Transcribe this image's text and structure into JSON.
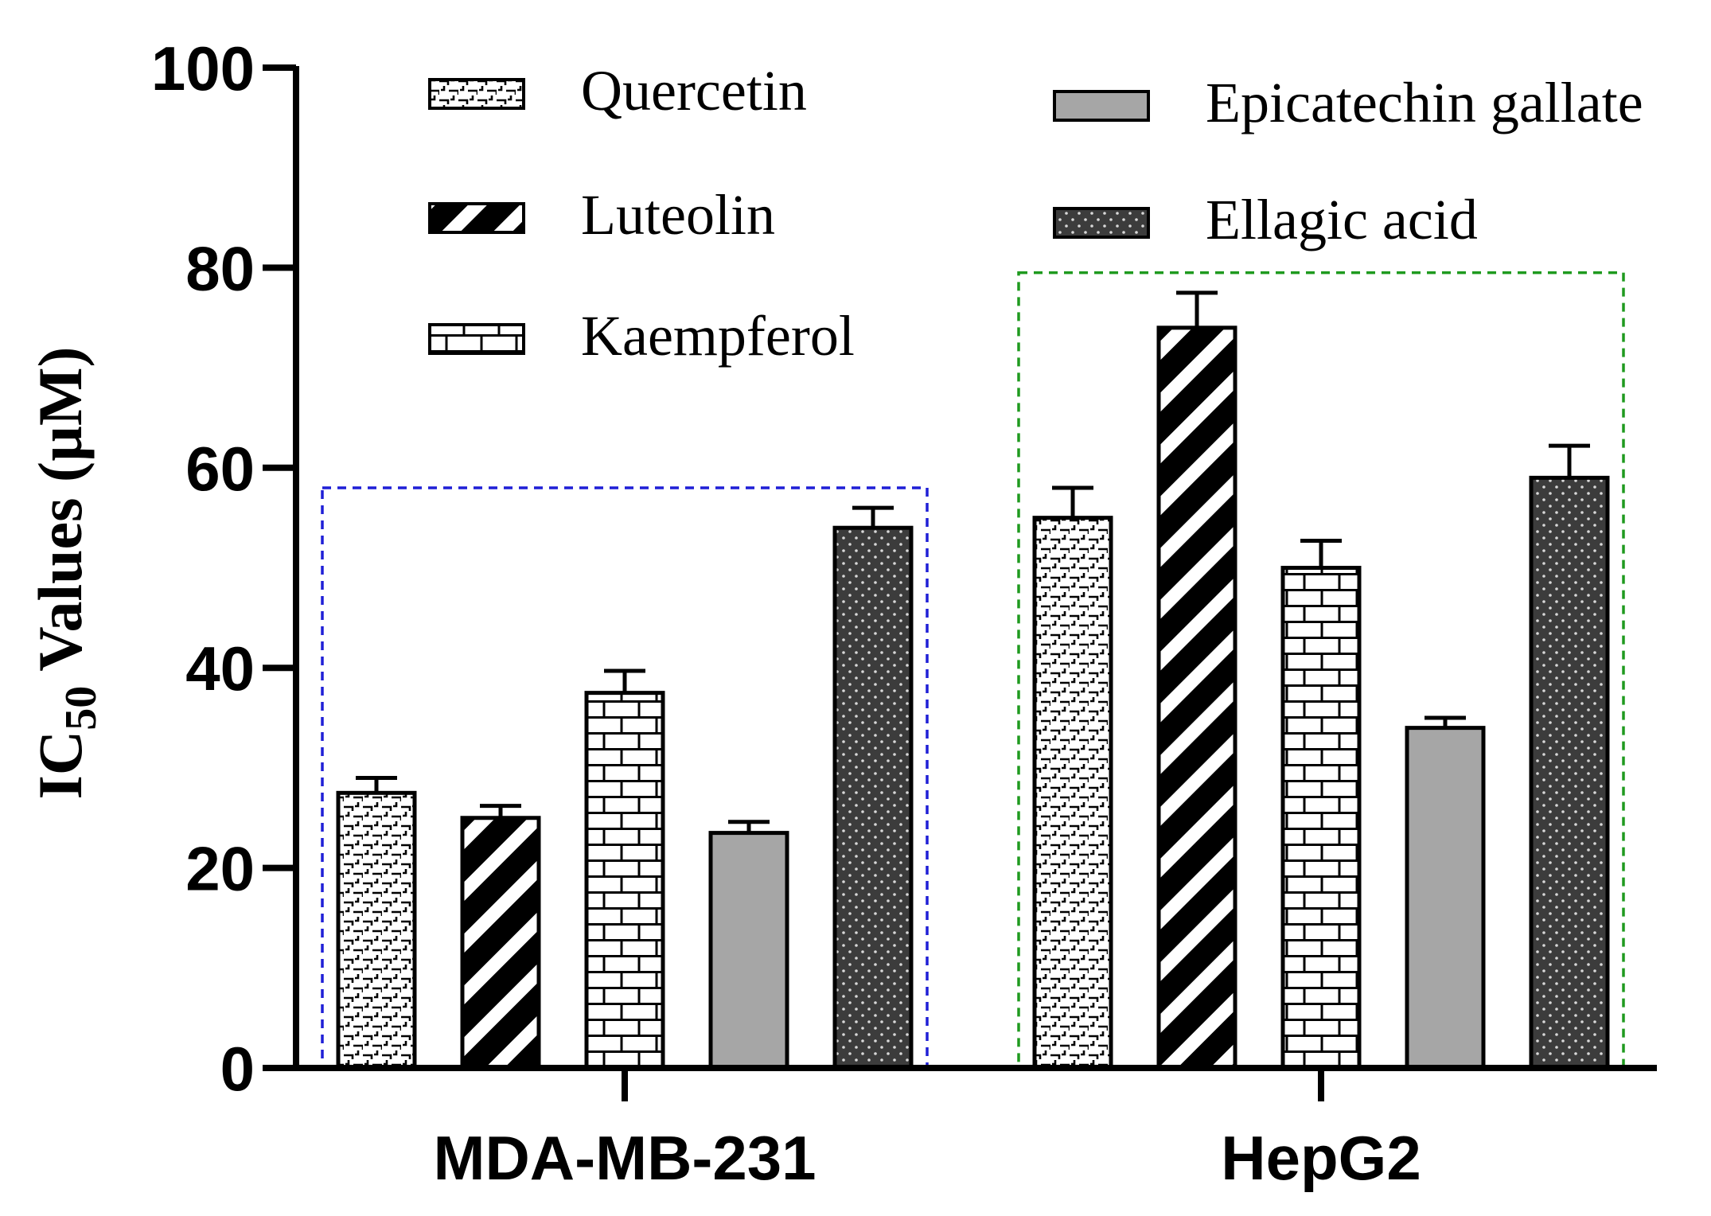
{
  "chart_data": {
    "type": "bar",
    "title": "",
    "xlabel": "",
    "ylabel": {
      "prefix": "IC",
      "subscript": "50",
      "suffix": " Values (µM)"
    },
    "ylim": [
      0,
      100
    ],
    "yticks": [
      0,
      20,
      40,
      60,
      80,
      100
    ],
    "grid": false,
    "categories": [
      "MDA-MB-231",
      "HepG2"
    ],
    "series": [
      {
        "name": "Quercetin",
        "pattern": "quercetin",
        "values": [
          27.5,
          55.0
        ],
        "errors": [
          1.5,
          3.0
        ]
      },
      {
        "name": "Luteolin",
        "pattern": "luteolin",
        "values": [
          25.0,
          74.0
        ],
        "errors": [
          1.2,
          3.5
        ]
      },
      {
        "name": "Kaempferol",
        "pattern": "kaempferol",
        "values": [
          37.5,
          50.0
        ],
        "errors": [
          2.2,
          2.7
        ]
      },
      {
        "name": "Epicatechin gallate",
        "pattern": "epicatechin",
        "values": [
          23.5,
          34.0
        ],
        "errors": [
          1.1,
          1.0
        ]
      },
      {
        "name": "Ellagic acid",
        "pattern": "ellagic",
        "values": [
          54.0,
          59.0
        ],
        "errors": [
          2.0,
          3.2
        ]
      }
    ],
    "group_boxes": [
      {
        "category": "MDA-MB-231",
        "color": "#1f1fd6",
        "top_value": 58
      },
      {
        "category": "HepG2",
        "color": "#1f9a1f",
        "top_value": 79.5
      }
    ],
    "legend_position": "top"
  }
}
